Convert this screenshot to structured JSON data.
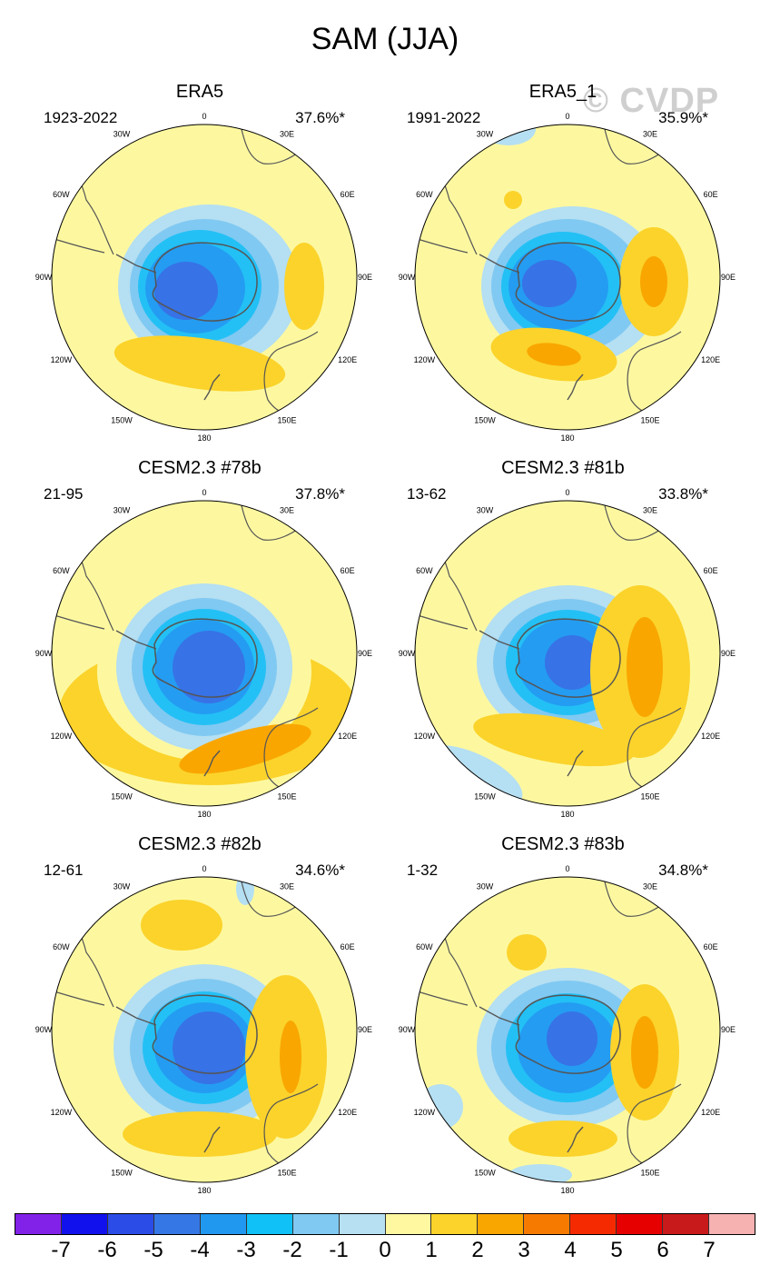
{
  "title": "SAM (JJA)",
  "watermark": "© CVDP",
  "colors": {
    "bg": "#fdf8a0",
    "pos1": "#fbd32b",
    "pos2": "#f9a600",
    "neg1": "#b5dff2",
    "neg2": "#80c9f2",
    "neg3": "#23c0f5",
    "neg4": "#249cf2",
    "neg5": "#3772e6",
    "land": "#555555"
  },
  "longitude_labels": [
    "0",
    "30E",
    "60E",
    "90E",
    "120E",
    "150E",
    "180",
    "150W",
    "120W",
    "90W",
    "60W",
    "30W"
  ],
  "panels": [
    {
      "title": "ERA5",
      "period": "1923-2022",
      "pct": "37.6%*"
    },
    {
      "title": "ERA5_1",
      "period": "1991-2022",
      "pct": "35.9%*"
    },
    {
      "title": "CESM2.3 #78b",
      "period": "21-95",
      "pct": "37.8%*"
    },
    {
      "title": "CESM2.3 #81b",
      "period": "13-62",
      "pct": "33.8%*"
    },
    {
      "title": "CESM2.3 #82b",
      "period": "12-61",
      "pct": "34.6%*"
    },
    {
      "title": "CESM2.3 #83b",
      "period": "1-32",
      "pct": "34.8%*"
    }
  ],
  "colorbar": {
    "colors": [
      "#8222e8",
      "#1111ee",
      "#2b4ce6",
      "#3677e6",
      "#2198f0",
      "#10c1f7",
      "#7fc9f2",
      "#b7e0f2",
      "#fff8a0",
      "#fbd32b",
      "#f9a600",
      "#f77a00",
      "#f62a00",
      "#e60000",
      "#c81a1a",
      "#f6b1b1"
    ],
    "labels": [
      "-7",
      "-6",
      "-5",
      "-4",
      "-3",
      "-2",
      "-1",
      "0",
      "1",
      "2",
      "3",
      "4",
      "5",
      "6",
      "7"
    ]
  }
}
